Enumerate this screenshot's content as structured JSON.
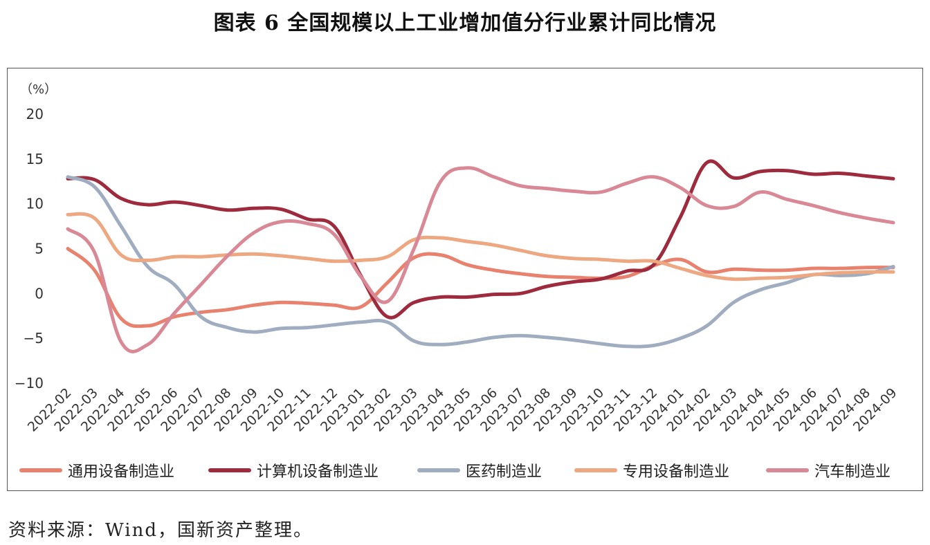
{
  "title": "图表 6  全国规模以上工业增加值分行业累计同比情况",
  "source": "资料来源：Wind，国新资产整理。",
  "chart_data": {
    "type": "line",
    "unit_label": "（%）",
    "ylim": [
      -10,
      20
    ],
    "yticks": [
      -10,
      -5,
      0,
      5,
      10,
      15,
      20
    ],
    "grid": false,
    "legend_position": "bottom",
    "categories": [
      "2022-02",
      "2022-03",
      "2022-04",
      "2022-05",
      "2022-06",
      "2022-07",
      "2022-08",
      "2022-09",
      "2022-10",
      "2022-11",
      "2022-12",
      "2023-01",
      "2023-02",
      "2023-03",
      "2023-04",
      "2023-05",
      "2023-06",
      "2023-07",
      "2023-08",
      "2023-09",
      "2023-10",
      "2023-11",
      "2023-12",
      "2024-01",
      "2024-02",
      "2024-03",
      "2024-04",
      "2024-05",
      "2024-06",
      "2024-07",
      "2024-08",
      "2024-09"
    ],
    "series": [
      {
        "name": "通用设备制造业",
        "color": "#e8826e",
        "values": [
          5.0,
          2.6,
          -2.8,
          -3.6,
          -2.6,
          -2.1,
          -1.8,
          -1.3,
          -1.0,
          -1.1,
          -1.3,
          -1.5,
          1.2,
          4.0,
          4.3,
          3.2,
          2.6,
          2.2,
          1.9,
          1.8,
          1.7,
          1.9,
          3.1,
          3.8,
          2.4,
          2.7,
          2.6,
          2.6,
          2.8,
          2.8,
          2.9,
          2.9
        ]
      },
      {
        "name": "计算机设备制造业",
        "color": "#9e2b3d",
        "values": [
          12.8,
          12.7,
          10.6,
          9.9,
          10.2,
          9.8,
          9.3,
          9.5,
          9.4,
          8.3,
          7.5,
          2.0,
          -2.6,
          -1.0,
          -0.4,
          -0.4,
          -0.1,
          0.0,
          0.8,
          1.3,
          1.6,
          2.5,
          3.2,
          8.5,
          14.6,
          12.9,
          13.6,
          13.7,
          13.3,
          13.4,
          13.1,
          12.8
        ]
      },
      {
        "name": "医药制造业",
        "color": "#a0adc0",
        "values": [
          13.0,
          11.9,
          7.5,
          3.0,
          1.0,
          -2.6,
          -3.8,
          -4.3,
          -3.9,
          -3.8,
          -3.5,
          -3.2,
          -3.2,
          -5.3,
          -5.7,
          -5.4,
          -4.9,
          -4.7,
          -4.9,
          -5.2,
          -5.6,
          -5.9,
          -5.8,
          -5.0,
          -3.6,
          -1.0,
          0.4,
          1.2,
          2.1,
          2.0,
          2.2,
          3.0
        ]
      },
      {
        "name": "专用设备制造业",
        "color": "#eda882",
        "values": [
          8.8,
          8.4,
          4.3,
          3.7,
          4.1,
          4.1,
          4.3,
          4.4,
          4.2,
          3.9,
          3.6,
          3.7,
          4.1,
          6.0,
          6.2,
          5.8,
          5.4,
          4.8,
          4.2,
          3.9,
          3.8,
          3.6,
          3.6,
          2.8,
          2.0,
          1.6,
          1.7,
          1.8,
          2.1,
          2.3,
          2.4,
          2.4
        ]
      },
      {
        "name": "汽车制造业",
        "color": "#d98996",
        "values": [
          7.2,
          4.6,
          -5.4,
          -5.7,
          -2.2,
          1.0,
          4.2,
          6.8,
          8.0,
          7.8,
          6.6,
          1.9,
          -0.9,
          5.0,
          12.5,
          14.0,
          13.0,
          12.0,
          11.7,
          11.4,
          11.3,
          12.3,
          13.0,
          11.8,
          9.8,
          9.7,
          11.3,
          10.5,
          9.8,
          9.0,
          8.4,
          7.9
        ]
      }
    ]
  }
}
